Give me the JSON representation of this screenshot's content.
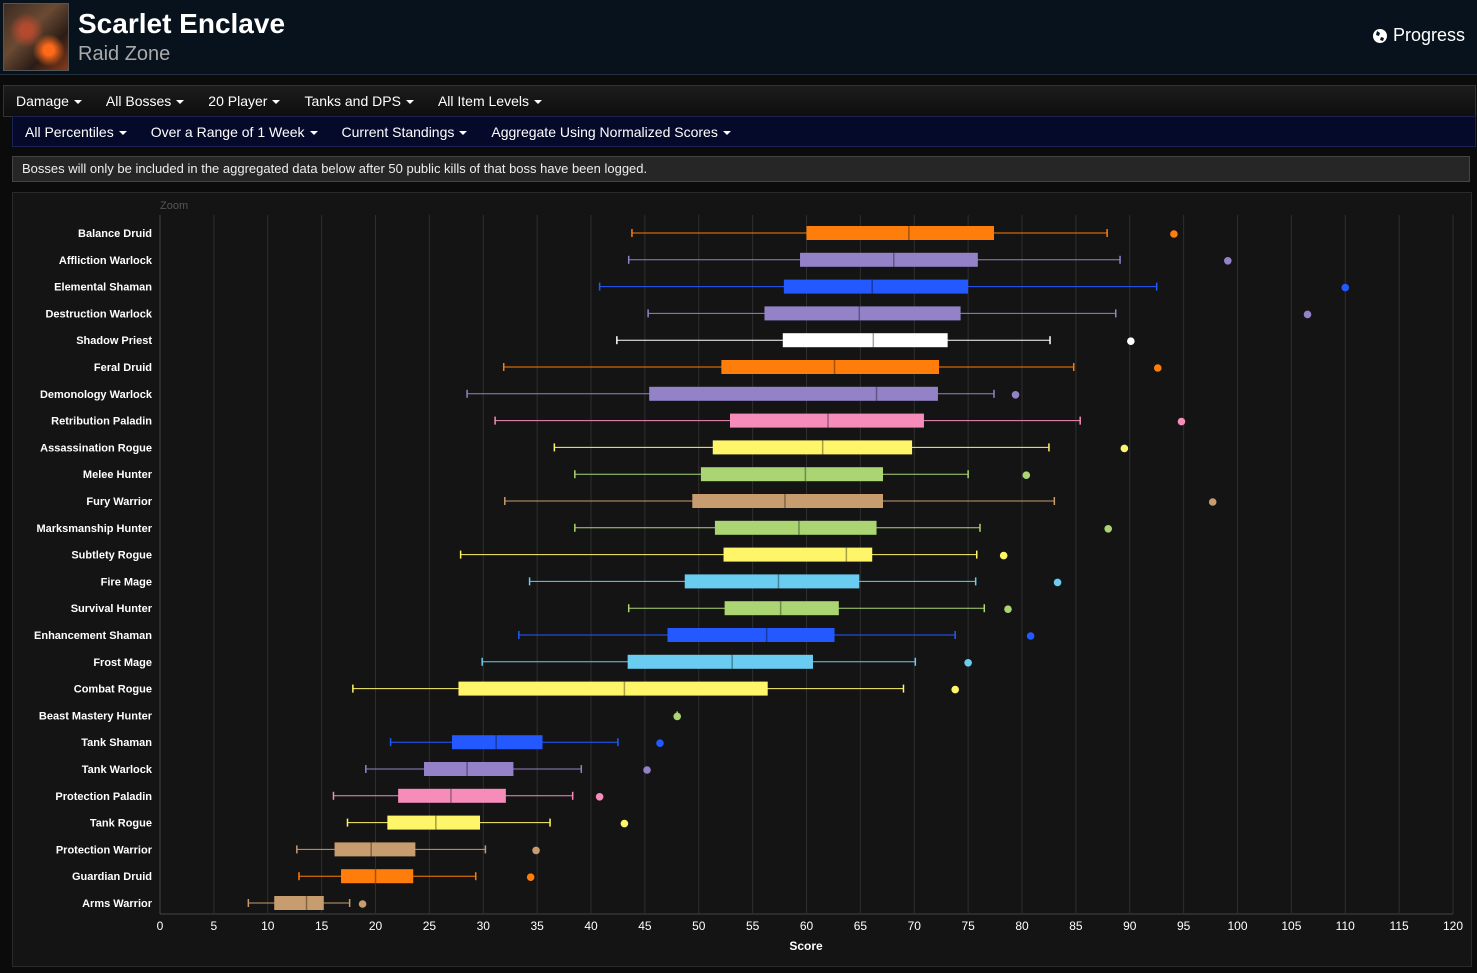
{
  "header": {
    "title": "Scarlet Enclave",
    "subtitle": "Raid Zone",
    "progress_label": "Progress"
  },
  "filters_row1": [
    "Damage",
    "All Bosses",
    "20 Player",
    "Tanks and DPS",
    "All Item Levels"
  ],
  "filters_row2": [
    "All Percentiles",
    "Over a Range of 1 Week",
    "Current Standings",
    "Aggregate Using Normalized Scores"
  ],
  "notice": "Bosses will only be included in the aggregated data below after 50 public kills of that boss have been logged.",
  "chart_data": {
    "type": "boxplot",
    "zoom_label": "Zoom",
    "xlabel": "Score",
    "xlim": [
      0,
      120
    ],
    "xticks": [
      0,
      5,
      10,
      15,
      20,
      25,
      30,
      35,
      40,
      45,
      50,
      55,
      60,
      65,
      70,
      75,
      80,
      85,
      90,
      95,
      100,
      105,
      110,
      115,
      120
    ],
    "grid": true,
    "categories": [
      {
        "name": "Balance Druid",
        "color": "#ff7d0a",
        "min": 43.8,
        "q1": 60,
        "median": 69.5,
        "q3": 77.4,
        "max": 87.9,
        "outlier": 94.1
      },
      {
        "name": "Affliction Warlock",
        "color": "#9482c9",
        "min": 43.5,
        "q1": 59.4,
        "median": 68.1,
        "q3": 75.9,
        "max": 89.1,
        "outlier": 99.1
      },
      {
        "name": "Elemental Shaman",
        "color": "#2359ff",
        "min": 40.8,
        "q1": 57.9,
        "median": 66.1,
        "q3": 75,
        "max": 92.5,
        "outlier": 110
      },
      {
        "name": "Destruction Warlock",
        "color": "#9482c9",
        "min": 45.3,
        "q1": 56.1,
        "median": 64.9,
        "q3": 74.3,
        "max": 88.7,
        "outlier": 106.5
      },
      {
        "name": "Shadow Priest",
        "color": "#ffffff",
        "min": 42.4,
        "q1": 57.8,
        "median": 66.2,
        "q3": 73.1,
        "max": 82.6,
        "outlier": 90.1
      },
      {
        "name": "Feral Druid",
        "color": "#ff7d0a",
        "min": 31.9,
        "q1": 52.1,
        "median": 62.6,
        "q3": 72.3,
        "max": 84.8,
        "outlier": 92.6
      },
      {
        "name": "Demonology Warlock",
        "color": "#9482c9",
        "min": 28.5,
        "q1": 45.4,
        "median": 66.5,
        "q3": 72.2,
        "max": 77.4,
        "outlier": 79.4
      },
      {
        "name": "Retribution Paladin",
        "color": "#f58cba",
        "min": 31.1,
        "q1": 52.9,
        "median": 62,
        "q3": 70.9,
        "max": 85.4,
        "outlier": 94.8
      },
      {
        "name": "Assassination Rogue",
        "color": "#fff569",
        "min": 36.6,
        "q1": 51.3,
        "median": 61.5,
        "q3": 69.8,
        "max": 82.5,
        "outlier": 89.5
      },
      {
        "name": "Melee Hunter",
        "color": "#abd473",
        "min": 38.5,
        "q1": 50.2,
        "median": 59.9,
        "q3": 67.1,
        "max": 75,
        "outlier": 80.4
      },
      {
        "name": "Fury Warrior",
        "color": "#c79c6e",
        "min": 32,
        "q1": 49.4,
        "median": 58,
        "q3": 67.1,
        "max": 83,
        "outlier": 97.7
      },
      {
        "name": "Marksmanship Hunter",
        "color": "#abd473",
        "min": 38.5,
        "q1": 51.5,
        "median": 59.3,
        "q3": 66.5,
        "max": 76.1,
        "outlier": 88
      },
      {
        "name": "Subtlety Rogue",
        "color": "#fff569",
        "min": 27.9,
        "q1": 52.3,
        "median": 63.7,
        "q3": 66.1,
        "max": 75.8,
        "outlier": 78.3
      },
      {
        "name": "Fire Mage",
        "color": "#69ccf0",
        "min": 34.3,
        "q1": 48.7,
        "median": 57.4,
        "q3": 64.9,
        "max": 75.7,
        "outlier": 83.3
      },
      {
        "name": "Survival Hunter",
        "color": "#abd473",
        "min": 43.5,
        "q1": 52.4,
        "median": 57.6,
        "q3": 63,
        "max": 76.5,
        "outlier": 78.7
      },
      {
        "name": "Enhancement Shaman",
        "color": "#2359ff",
        "min": 33.3,
        "q1": 47.1,
        "median": 56.3,
        "q3": 62.6,
        "max": 73.8,
        "outlier": 80.8
      },
      {
        "name": "Frost Mage",
        "color": "#69ccf0",
        "min": 29.9,
        "q1": 43.4,
        "median": 53.1,
        "q3": 60.6,
        "max": 70.1,
        "outlier": 75
      },
      {
        "name": "Combat Rogue",
        "color": "#fff569",
        "min": 17.9,
        "q1": 27.7,
        "median": 43.1,
        "q3": 56.4,
        "max": 69,
        "outlier": 73.8
      },
      {
        "name": "Beast Mastery Hunter",
        "color": "#abd473",
        "min": 48,
        "q1": 48,
        "median": 48,
        "q3": 48,
        "max": 48,
        "outlier": 48
      },
      {
        "name": "Tank Shaman",
        "color": "#2359ff",
        "min": 21.4,
        "q1": 27.1,
        "median": 31.2,
        "q3": 35.5,
        "max": 42.5,
        "outlier": 46.4
      },
      {
        "name": "Tank Warlock",
        "color": "#9482c9",
        "min": 19.1,
        "q1": 24.5,
        "median": 28.5,
        "q3": 32.8,
        "max": 39.1,
        "outlier": 45.2
      },
      {
        "name": "Protection Paladin",
        "color": "#f58cba",
        "min": 16.1,
        "q1": 22.1,
        "median": 27,
        "q3": 32.1,
        "max": 38.3,
        "outlier": 40.8
      },
      {
        "name": "Tank Rogue",
        "color": "#fff569",
        "min": 17.4,
        "q1": 21.1,
        "median": 25.6,
        "q3": 29.7,
        "max": 36.2,
        "outlier": 43.1
      },
      {
        "name": "Protection Warrior",
        "color": "#c79c6e",
        "min": 12.7,
        "q1": 16.2,
        "median": 19.6,
        "q3": 23.7,
        "max": 30.2,
        "outlier": 34.9
      },
      {
        "name": "Guardian Druid",
        "color": "#ff7d0a",
        "min": 12.9,
        "q1": 16.8,
        "median": 20,
        "q3": 23.5,
        "max": 29.3,
        "outlier": 34.4
      },
      {
        "name": "Arms Warrior",
        "color": "#c79c6e",
        "min": 8.2,
        "q1": 10.6,
        "median": 13.6,
        "q3": 15.2,
        "max": 17.6,
        "outlier": 18.8
      }
    ]
  }
}
